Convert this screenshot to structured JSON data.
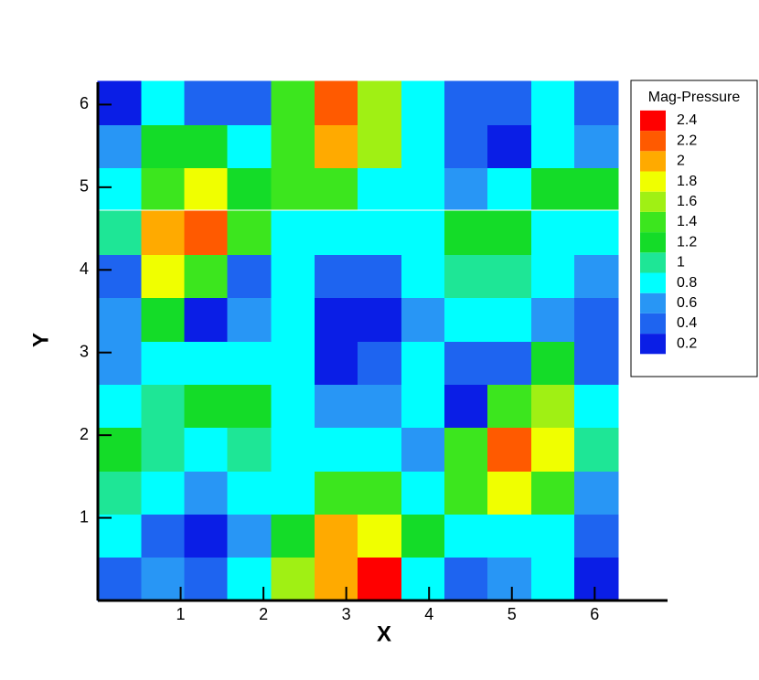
{
  "chart_data": {
    "type": "contour",
    "x_label": "X",
    "y_label": "Y",
    "xlim": [
      0,
      6.88
    ],
    "ylim": [
      0,
      6.27
    ],
    "xticks": [
      1,
      2,
      3,
      4,
      5,
      6
    ],
    "yticks": [
      1,
      2,
      3,
      4,
      5,
      6
    ],
    "x": [
      0.26,
      0.79,
      1.31,
      1.83,
      2.36,
      2.88,
      3.4,
      3.93,
      4.45,
      4.97,
      5.5,
      6.02
    ],
    "y": [
      0.26,
      0.79,
      1.31,
      1.83,
      2.36,
      2.88,
      3.4,
      3.93,
      4.45,
      5.0,
      5.5,
      6.02
    ],
    "z": [
      [
        0.5,
        0.7,
        0.4,
        0.8,
        1.6,
        2.1,
        2.4,
        0.9,
        0.5,
        0.7,
        0.8,
        0.3
      ],
      [
        0.8,
        0.5,
        0.3,
        0.6,
        1.2,
        2.0,
        1.9,
        1.1,
        0.8,
        0.9,
        0.8,
        0.5
      ],
      [
        1.0,
        0.9,
        0.6,
        0.8,
        0.9,
        1.3,
        1.3,
        0.9,
        1.3,
        1.8,
        1.4,
        0.7
      ],
      [
        1.1,
        1.0,
        0.9,
        1.0,
        0.9,
        0.9,
        0.9,
        0.7,
        1.4,
        2.2,
        1.9,
        1.0
      ],
      [
        0.9,
        1.0,
        1.1,
        1.1,
        0.9,
        0.7,
        0.7,
        0.9,
        0.3,
        1.4,
        1.6,
        0.8
      ],
      [
        0.7,
        0.8,
        0.8,
        0.9,
        0.8,
        0.3,
        0.4,
        0.8,
        0.5,
        0.5,
        1.1,
        0.5
      ],
      [
        0.6,
        1.2,
        0.3,
        0.6,
        0.8,
        0.3,
        0.3,
        0.7,
        0.8,
        0.8,
        0.7,
        0.4
      ],
      [
        0.5,
        1.8,
        1.4,
        0.5,
        0.8,
        0.5,
        0.5,
        0.8,
        1.0,
        1.0,
        0.8,
        0.6
      ],
      [
        1.0,
        2.0,
        2.2,
        1.3,
        0.9,
        0.9,
        0.8,
        0.9,
        1.1,
        1.1,
        0.9,
        0.8
      ],
      [
        0.9,
        1.5,
        1.8,
        1.2,
        1.3,
        1.5,
        0.9,
        0.8,
        0.7,
        0.8,
        1.1,
        1.1
      ],
      [
        0.7,
        1.2,
        1.2,
        0.8,
        1.5,
        2.1,
        1.6,
        0.8,
        0.4,
        0.3,
        0.8,
        0.7
      ],
      [
        0.3,
        0.8,
        0.5,
        0.5,
        1.3,
        2.3,
        1.6,
        0.8,
        0.4,
        0.4,
        0.8,
        0.5
      ]
    ],
    "legend_title": "Mag-Pressure",
    "levels": [
      0.2,
      0.4,
      0.6,
      0.8,
      1,
      1.2,
      1.4,
      1.6,
      1.8,
      2,
      2.2,
      2.4
    ],
    "level_colors": [
      "#0a1ee6",
      "#1e64f0",
      "#2896f5",
      "#00ffff",
      "#1ee696",
      "#14dc28",
      "#3ce61e",
      "#a0f014",
      "#f0ff00",
      "#ffaa00",
      "#ff5a00",
      "#ff0000"
    ]
  }
}
